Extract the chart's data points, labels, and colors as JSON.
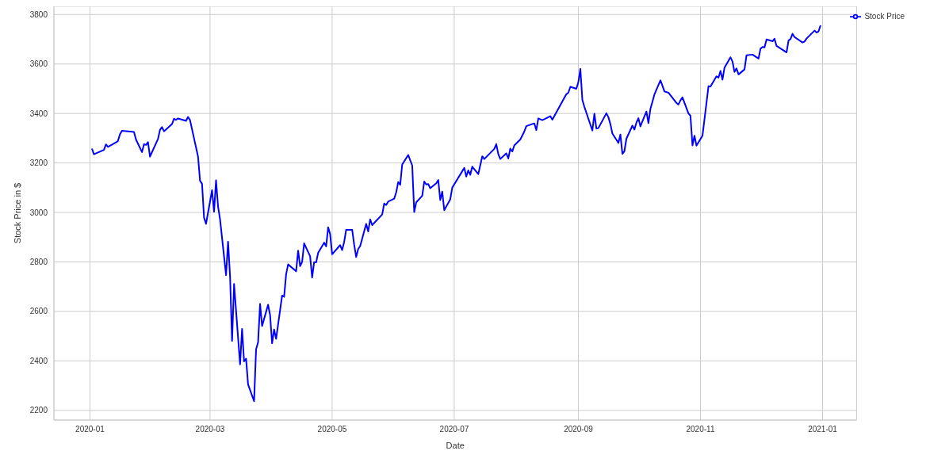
{
  "chart_data": {
    "type": "line",
    "xlabel": "Date",
    "ylabel": "Stock Price in $",
    "x": [
      "2020-01-02",
      "2020-01-03",
      "2020-01-08",
      "2020-01-09",
      "2020-01-10",
      "2020-01-14",
      "2020-01-15",
      "2020-01-16",
      "2020-01-17",
      "2020-01-23",
      "2020-01-24",
      "2020-01-27",
      "2020-01-28",
      "2020-01-29",
      "2020-01-30",
      "2020-01-31",
      "2020-02-04",
      "2020-02-05",
      "2020-02-06",
      "2020-02-07",
      "2020-02-11",
      "2020-02-12",
      "2020-02-13",
      "2020-02-14",
      "2020-02-18",
      "2020-02-19",
      "2020-02-20",
      "2020-02-24",
      "2020-02-25",
      "2020-02-26",
      "2020-02-27",
      "2020-02-28",
      "2020-03-02",
      "2020-03-03",
      "2020-03-04",
      "2020-03-05",
      "2020-03-06",
      "2020-03-09",
      "2020-03-10",
      "2020-03-11",
      "2020-03-12",
      "2020-03-13",
      "2020-03-16",
      "2020-03-17",
      "2020-03-18",
      "2020-03-19",
      "2020-03-20",
      "2020-03-23",
      "2020-03-24",
      "2020-03-25",
      "2020-03-26",
      "2020-03-27",
      "2020-03-30",
      "2020-03-31",
      "2020-04-01",
      "2020-04-02",
      "2020-04-03",
      "2020-04-06",
      "2020-04-07",
      "2020-04-08",
      "2020-04-09",
      "2020-04-13",
      "2020-04-14",
      "2020-04-15",
      "2020-04-16",
      "2020-04-17",
      "2020-04-20",
      "2020-04-21",
      "2020-04-22",
      "2020-04-23",
      "2020-04-24",
      "2020-04-27",
      "2020-04-28",
      "2020-04-29",
      "2020-04-30",
      "2020-05-01",
      "2020-05-05",
      "2020-05-06",
      "2020-05-07",
      "2020-05-08",
      "2020-05-11",
      "2020-05-12",
      "2020-05-13",
      "2020-05-14",
      "2020-05-15",
      "2020-05-18",
      "2020-05-19",
      "2020-05-20",
      "2020-05-21",
      "2020-05-26",
      "2020-05-27",
      "2020-05-28",
      "2020-05-29",
      "2020-06-01",
      "2020-06-02",
      "2020-06-03",
      "2020-06-04",
      "2020-06-05",
      "2020-06-08",
      "2020-06-10",
      "2020-06-11",
      "2020-06-12",
      "2020-06-15",
      "2020-06-16",
      "2020-06-17",
      "2020-06-18",
      "2020-06-19",
      "2020-06-22",
      "2020-06-23",
      "2020-06-24",
      "2020-06-25",
      "2020-06-26",
      "2020-06-29",
      "2020-06-30",
      "2020-07-06",
      "2020-07-07",
      "2020-07-08",
      "2020-07-09",
      "2020-07-10",
      "2020-07-13",
      "2020-07-15",
      "2020-07-16",
      "2020-07-21",
      "2020-07-22",
      "2020-07-23",
      "2020-07-24",
      "2020-07-27",
      "2020-07-28",
      "2020-07-29",
      "2020-07-30",
      "2020-07-31",
      "2020-08-03",
      "2020-08-05",
      "2020-08-06",
      "2020-08-10",
      "2020-08-11",
      "2020-08-12",
      "2020-08-14",
      "2020-08-18",
      "2020-08-19",
      "2020-08-26",
      "2020-08-27",
      "2020-08-28",
      "2020-08-31",
      "2020-09-01",
      "2020-09-02",
      "2020-09-03",
      "2020-09-04",
      "2020-09-08",
      "2020-09-09",
      "2020-09-10",
      "2020-09-11",
      "2020-09-15",
      "2020-09-16",
      "2020-09-17",
      "2020-09-18",
      "2020-09-21",
      "2020-09-22",
      "2020-09-23",
      "2020-09-24",
      "2020-09-25",
      "2020-09-28",
      "2020-09-29",
      "2020-09-30",
      "2020-10-01",
      "2020-10-02",
      "2020-10-05",
      "2020-10-06",
      "2020-10-07",
      "2020-10-08",
      "2020-10-09",
      "2020-10-12",
      "2020-10-13",
      "2020-10-14",
      "2020-10-16",
      "2020-10-20",
      "2020-10-21",
      "2020-10-22",
      "2020-10-23",
      "2020-10-26",
      "2020-10-27",
      "2020-10-28",
      "2020-10-29",
      "2020-10-30",
      "2020-11-02",
      "2020-11-04",
      "2020-11-05",
      "2020-11-06",
      "2020-11-09",
      "2020-11-10",
      "2020-11-11",
      "2020-11-12",
      "2020-11-13",
      "2020-11-16",
      "2020-11-17",
      "2020-11-18",
      "2020-11-19",
      "2020-11-20",
      "2020-11-23",
      "2020-11-24",
      "2020-11-27",
      "2020-11-30",
      "2020-12-01",
      "2020-12-02",
      "2020-12-03",
      "2020-12-04",
      "2020-12-07",
      "2020-12-08",
      "2020-12-09",
      "2020-12-14",
      "2020-12-15",
      "2020-12-16",
      "2020-12-17",
      "2020-12-18",
      "2020-12-22",
      "2020-12-23",
      "2020-12-24",
      "2020-12-28",
      "2020-12-29",
      "2020-12-30",
      "2020-12-31"
    ],
    "series": [
      {
        "name": "Stock Price",
        "color": "#0000ff",
        "values": [
          3258,
          3235,
          3253,
          3275,
          3265,
          3283,
          3289,
          3316,
          3330,
          3325,
          3295,
          3244,
          3276,
          3273,
          3284,
          3226,
          3297,
          3334,
          3345,
          3328,
          3357,
          3379,
          3374,
          3380,
          3370,
          3386,
          3373,
          3226,
          3128,
          3116,
          2979,
          2954,
          3090,
          3003,
          3130,
          3024,
          2972,
          2747,
          2882,
          2741,
          2481,
          2711,
          2386,
          2529,
          2398,
          2409,
          2305,
          2237,
          2447,
          2476,
          2630,
          2541,
          2627,
          2585,
          2471,
          2527,
          2489,
          2664,
          2659,
          2750,
          2790,
          2762,
          2846,
          2783,
          2800,
          2875,
          2823,
          2737,
          2799,
          2798,
          2837,
          2878,
          2863,
          2940,
          2912,
          2831,
          2868,
          2848,
          2881,
          2930,
          2930,
          2870,
          2820,
          2852,
          2864,
          2954,
          2923,
          2972,
          2949,
          2992,
          3036,
          3030,
          3044,
          3056,
          3081,
          3123,
          3112,
          3194,
          3232,
          3190,
          3002,
          3041,
          3067,
          3125,
          3113,
          3115,
          3098,
          3118,
          3131,
          3050,
          3084,
          3009,
          3053,
          3100,
          3180,
          3145,
          3170,
          3152,
          3185,
          3155,
          3227,
          3216,
          3257,
          3276,
          3236,
          3216,
          3239,
          3218,
          3258,
          3246,
          3271,
          3295,
          3327,
          3349,
          3360,
          3333,
          3380,
          3373,
          3389,
          3375,
          3478,
          3484,
          3508,
          3500,
          3527,
          3580,
          3455,
          3427,
          3331,
          3399,
          3339,
          3341,
          3401,
          3385,
          3357,
          3319,
          3281,
          3315,
          3237,
          3247,
          3298,
          3351,
          3335,
          3363,
          3381,
          3348,
          3408,
          3361,
          3419,
          3447,
          3477,
          3534,
          3512,
          3489,
          3484,
          3443,
          3436,
          3453,
          3465,
          3400,
          3391,
          3271,
          3310,
          3270,
          3310,
          3443,
          3510,
          3509,
          3550,
          3545,
          3572,
          3537,
          3585,
          3627,
          3610,
          3568,
          3582,
          3558,
          3578,
          3635,
          3638,
          3622,
          3662,
          3669,
          3667,
          3699,
          3692,
          3702,
          3673,
          3647,
          3695,
          3701,
          3722,
          3709,
          3687,
          3691,
          3703,
          3735,
          3727,
          3732,
          3756
        ]
      }
    ],
    "xlim": [
      "2019-12-14",
      "2021-01-18"
    ],
    "xticks": [
      "2020-01",
      "2020-03",
      "2020-05",
      "2020-07",
      "2020-09",
      "2020-11",
      "2021-01"
    ],
    "ylim": [
      2161,
      3833
    ],
    "yticks": [
      2200,
      2400,
      2600,
      2800,
      3000,
      3200,
      3400,
      3600,
      3800
    ],
    "grid": true,
    "legend": "top right",
    "marker": "none",
    "line_style": "solid"
  }
}
